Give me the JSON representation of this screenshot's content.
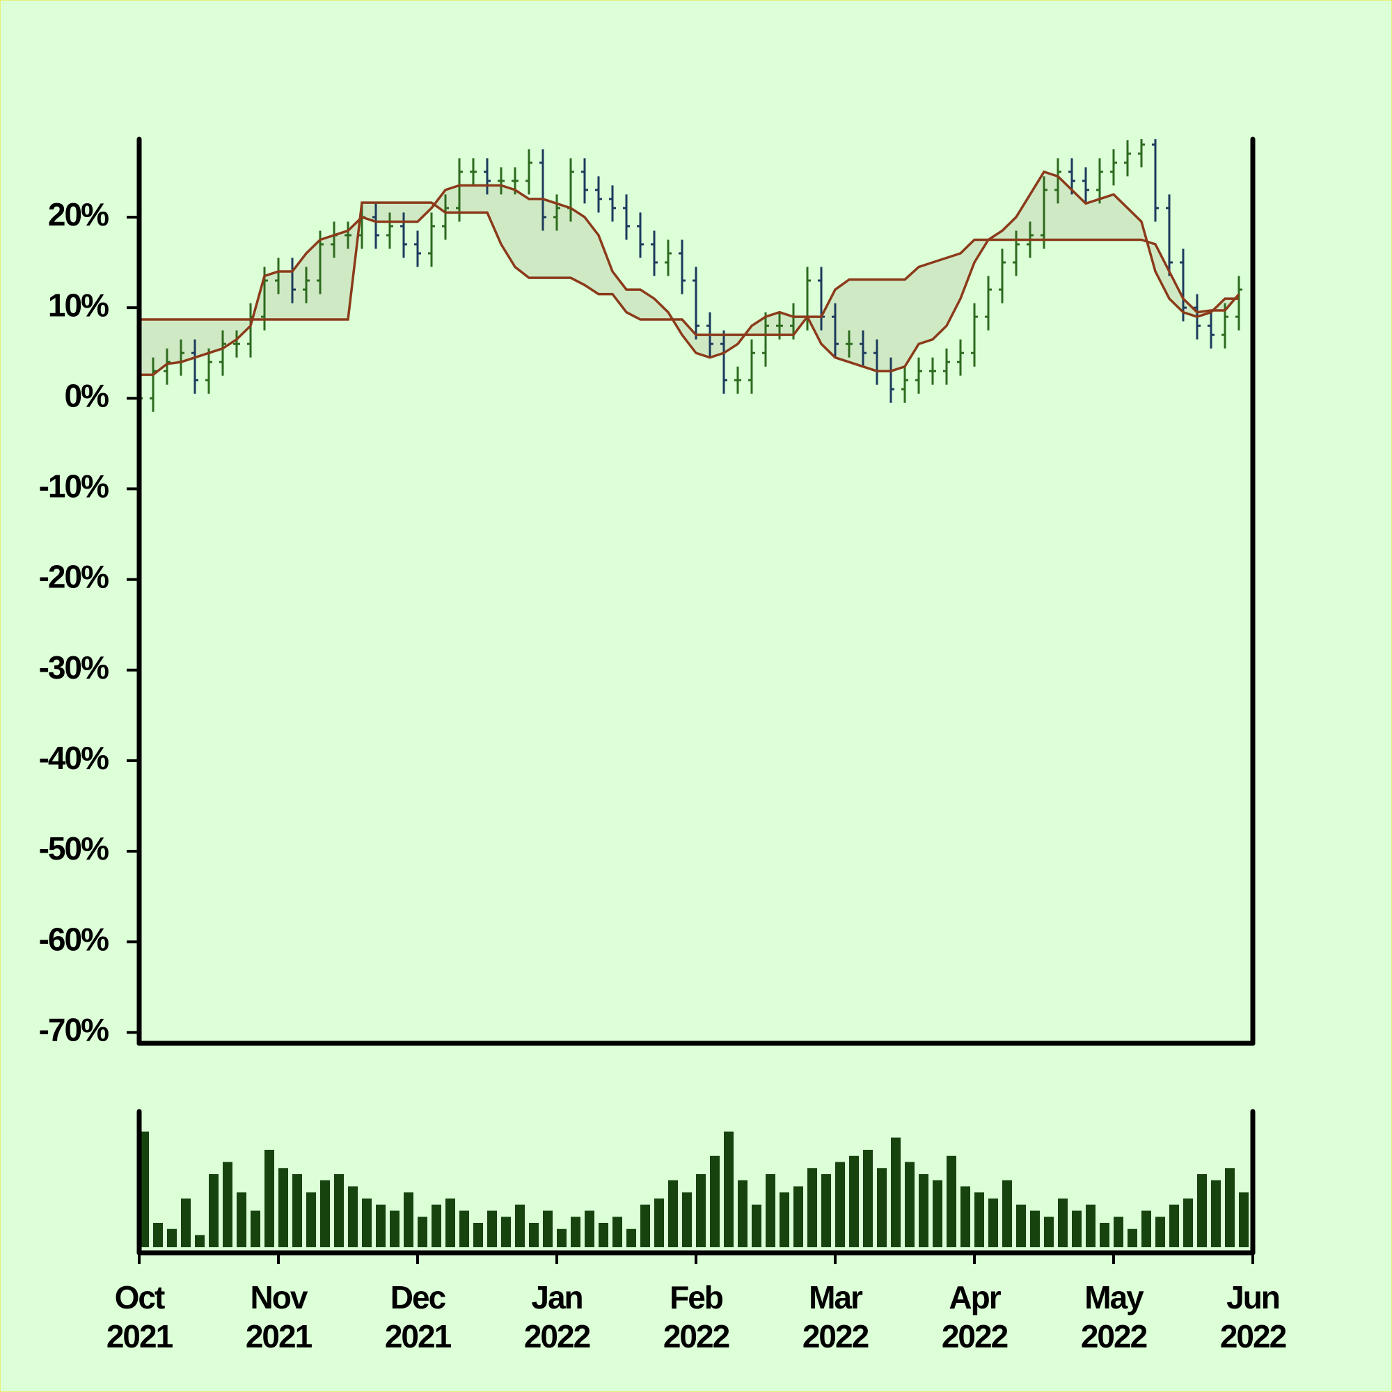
{
  "chart_data": {
    "type": "ohlc",
    "x": [
      0,
      0.1,
      0.2,
      0.3,
      0.4,
      0.5,
      0.6,
      0.7,
      0.8,
      0.9,
      1,
      1.1,
      1.2,
      1.3,
      1.4,
      1.5,
      1.6,
      1.7,
      1.8,
      1.9,
      2,
      2.1,
      2.2,
      2.3,
      2.4,
      2.5,
      2.6,
      2.7,
      2.8,
      2.9,
      3,
      3.1,
      3.2,
      3.3,
      3.4,
      3.5,
      3.6,
      3.7,
      3.8,
      3.9,
      4,
      4.1,
      4.2,
      4.3,
      4.4,
      4.5,
      4.6,
      4.7,
      4.8,
      4.9,
      5,
      5.1,
      5.2,
      5.3,
      5.4,
      5.5,
      5.6,
      5.7,
      5.8,
      5.9,
      6,
      6.1,
      6.2,
      6.3,
      6.4,
      6.5,
      6.6,
      6.7,
      6.8,
      6.9,
      7,
      7.1,
      7.2,
      7.3,
      7.4,
      7.5,
      7.6,
      7.7,
      7.8,
      7.9
    ],
    "open": [
      -1,
      0,
      3,
      4,
      5,
      2,
      4,
      6,
      6,
      9,
      13,
      14,
      12,
      13,
      17,
      18,
      18,
      20,
      18,
      19,
      17,
      16,
      19,
      21,
      25,
      25,
      24,
      24,
      24,
      26,
      20,
      21,
      25,
      23,
      22,
      21,
      19,
      17,
      15,
      16,
      13,
      8,
      6,
      2,
      2,
      5,
      8,
      8,
      9,
      13,
      9,
      6,
      6,
      5,
      3,
      1,
      2,
      3,
      3,
      4,
      5,
      9,
      12,
      15,
      17,
      18,
      23,
      25,
      24,
      23,
      25,
      26,
      27,
      28,
      21,
      15,
      10,
      8,
      7,
      9
    ],
    "high": [
      1.5,
      4.5,
      5.5,
      6.5,
      6.5,
      5.5,
      7.5,
      7.5,
      10.5,
      14.5,
      15.5,
      15.5,
      14.5,
      18.5,
      19.5,
      19.5,
      21.5,
      21.5,
      20.5,
      20.5,
      18.5,
      20.5,
      22.5,
      26.5,
      26.5,
      26.5,
      25.5,
      25.5,
      27.5,
      27.5,
      22.5,
      26.5,
      26.5,
      24.5,
      23.5,
      22.5,
      20.5,
      18.5,
      17.5,
      17.5,
      14.5,
      9.5,
      7.5,
      3.5,
      6.5,
      9.5,
      9.5,
      10.5,
      14.5,
      14.5,
      10.5,
      7.5,
      7.5,
      6.5,
      4.5,
      3.5,
      4.5,
      4.5,
      5.5,
      6.5,
      10.5,
      13.5,
      16.5,
      18.5,
      19.5,
      24.5,
      26.5,
      26.5,
      25.5,
      26.5,
      27.5,
      28.5,
      29.5,
      29.5,
      22.5,
      16.5,
      11.5,
      9.5,
      10.5,
      13.5
    ],
    "low": [
      -2.5,
      -1.5,
      1.5,
      2.5,
      0.5,
      0.5,
      2.5,
      4.5,
      4.5,
      7.5,
      11.5,
      10.5,
      10.5,
      11.5,
      15.5,
      16.5,
      16.5,
      16.5,
      16.5,
      15.5,
      14.5,
      14.5,
      17.5,
      19.5,
      23.5,
      22.5,
      22.5,
      22.5,
      22.5,
      18.5,
      18.5,
      19.5,
      21.5,
      20.5,
      19.5,
      17.5,
      15.5,
      13.5,
      13.5,
      11.5,
      6.5,
      4.5,
      0.5,
      0.5,
      0.5,
      3.5,
      6.5,
      6.5,
      7.5,
      7.5,
      4.5,
      4.5,
      3.5,
      1.5,
      -0.5,
      -0.5,
      0.5,
      1.5,
      1.5,
      2.5,
      3.5,
      7.5,
      10.5,
      13.5,
      15.5,
      16.5,
      21.5,
      22.5,
      21.5,
      21.5,
      23.5,
      24.5,
      25.5,
      19.5,
      13.5,
      8.5,
      6.5,
      5.5,
      5.5,
      7.5
    ],
    "close": [
      0,
      3,
      4,
      5,
      2,
      4,
      6,
      6,
      9,
      13,
      14,
      12,
      13,
      17,
      18,
      18,
      20,
      18,
      19,
      17,
      16,
      19,
      21,
      25,
      25,
      24,
      24,
      24,
      26,
      20,
      21,
      25,
      23,
      22,
      21,
      19,
      17,
      15,
      16,
      13,
      8,
      6,
      2,
      2,
      5,
      8,
      8,
      9,
      13,
      9,
      6,
      6,
      5,
      3,
      1,
      2,
      3,
      3,
      4,
      5,
      9,
      12,
      15,
      17,
      18,
      23,
      25,
      24,
      23,
      25,
      26,
      27,
      28,
      21,
      15,
      10,
      8,
      7,
      9,
      12
    ],
    "lines": [
      {
        "color": "#8b3a1a",
        "values": [
          8.7,
          8.7,
          8.7,
          8.7,
          8.7,
          8.7,
          8.7,
          8.7,
          8.7,
          8.7,
          8.7,
          8.7,
          8.7,
          8.7,
          8.7,
          8.7,
          21.6,
          21.6,
          21.6,
          21.6,
          21.6,
          21.6,
          20.5,
          20.5,
          20.5,
          20.5,
          17,
          14.5,
          13.3,
          13.3,
          13.3,
          13.3,
          12.5,
          11.5,
          11.5,
          9.5,
          8.7,
          8.7,
          8.7,
          8.7,
          7,
          7,
          7,
          7,
          7,
          7,
          7,
          7,
          9,
          9,
          12,
          13.1,
          13.1,
          13.1,
          13.1,
          13.1,
          14.5,
          15,
          15.5,
          16,
          17.5,
          17.5,
          17.5,
          17.5,
          17.5,
          17.5,
          17.5,
          17.5,
          17.5,
          17.5,
          17.5,
          17.5,
          17.5,
          17,
          14,
          11,
          9.5,
          9.7,
          9.7,
          11.5
        ]
      },
      {
        "color": "#8b3a1a",
        "values": [
          2.6,
          2.6,
          3.8,
          4,
          4.5,
          5,
          5.5,
          6.5,
          8,
          13.5,
          14,
          14,
          16,
          17.5,
          18,
          18.5,
          20,
          19.5,
          19.5,
          19.5,
          19.5,
          21,
          23,
          23.5,
          23.5,
          23.5,
          23.5,
          23,
          22,
          22,
          21.5,
          21,
          20,
          18,
          14,
          12,
          12,
          11,
          9.5,
          7,
          5,
          4.5,
          5,
          6,
          8,
          9,
          9.5,
          9,
          9,
          6,
          4.5,
          4,
          3.5,
          3,
          3,
          3.5,
          6,
          6.5,
          8,
          11,
          15,
          17.5,
          18.5,
          20,
          22.5,
          25,
          24.5,
          23,
          21.5,
          22,
          22.5,
          21,
          19.5,
          14,
          11,
          9.5,
          9,
          9.5,
          11,
          11
        ]
      }
    ],
    "cloud_color": "#cfe9c4",
    "up_color": "#2d6a1e",
    "down_color": "#1b3a5c",
    "volume": [
      95,
      20,
      15,
      40,
      10,
      60,
      70,
      45,
      30,
      80,
      65,
      60,
      45,
      55,
      60,
      50,
      40,
      35,
      30,
      45,
      25,
      35,
      40,
      30,
      20,
      30,
      25,
      35,
      20,
      30,
      15,
      25,
      30,
      20,
      25,
      15,
      35,
      40,
      55,
      45,
      60,
      75,
      95,
      55,
      35,
      60,
      45,
      50,
      65,
      60,
      70,
      75,
      80,
      65,
      90,
      70,
      60,
      55,
      75,
      50,
      45,
      40,
      55,
      35,
      30,
      25,
      40,
      30,
      35,
      20,
      25,
      15,
      30,
      25,
      35,
      40,
      60,
      55,
      65,
      45
    ],
    "volume_color": "#17430f",
    "volume_ylim": [
      0,
      100
    ],
    "xlim": [
      0,
      8
    ],
    "xticks": [
      {
        "value": 0,
        "label": "Oct 2021"
      },
      {
        "value": 1,
        "label": "Nov 2021"
      },
      {
        "value": 2,
        "label": "Dec 2021"
      },
      {
        "value": 3,
        "label": "Jan 2022"
      },
      {
        "value": 4,
        "label": "Feb 2022"
      },
      {
        "value": 5,
        "label": "Mar 2022"
      },
      {
        "value": 6,
        "label": "Apr 2022"
      },
      {
        "value": 7,
        "label": "May 2022"
      },
      {
        "value": 8,
        "label": "Jun 2022"
      }
    ],
    "ylim": [
      -71.2,
      28.6
    ],
    "yticks": [
      {
        "value": 20,
        "label": "20%"
      },
      {
        "value": 10,
        "label": "10%"
      },
      {
        "value": 0,
        "label": "0%"
      },
      {
        "value": -10,
        "label": "-10%"
      },
      {
        "value": -20,
        "label": "-20%"
      },
      {
        "value": -30,
        "label": "-30%"
      },
      {
        "value": -40,
        "label": "-40%"
      },
      {
        "value": -50,
        "label": "-50%"
      },
      {
        "value": -60,
        "label": "-60%"
      },
      {
        "value": -70,
        "label": "-70%"
      }
    ]
  }
}
